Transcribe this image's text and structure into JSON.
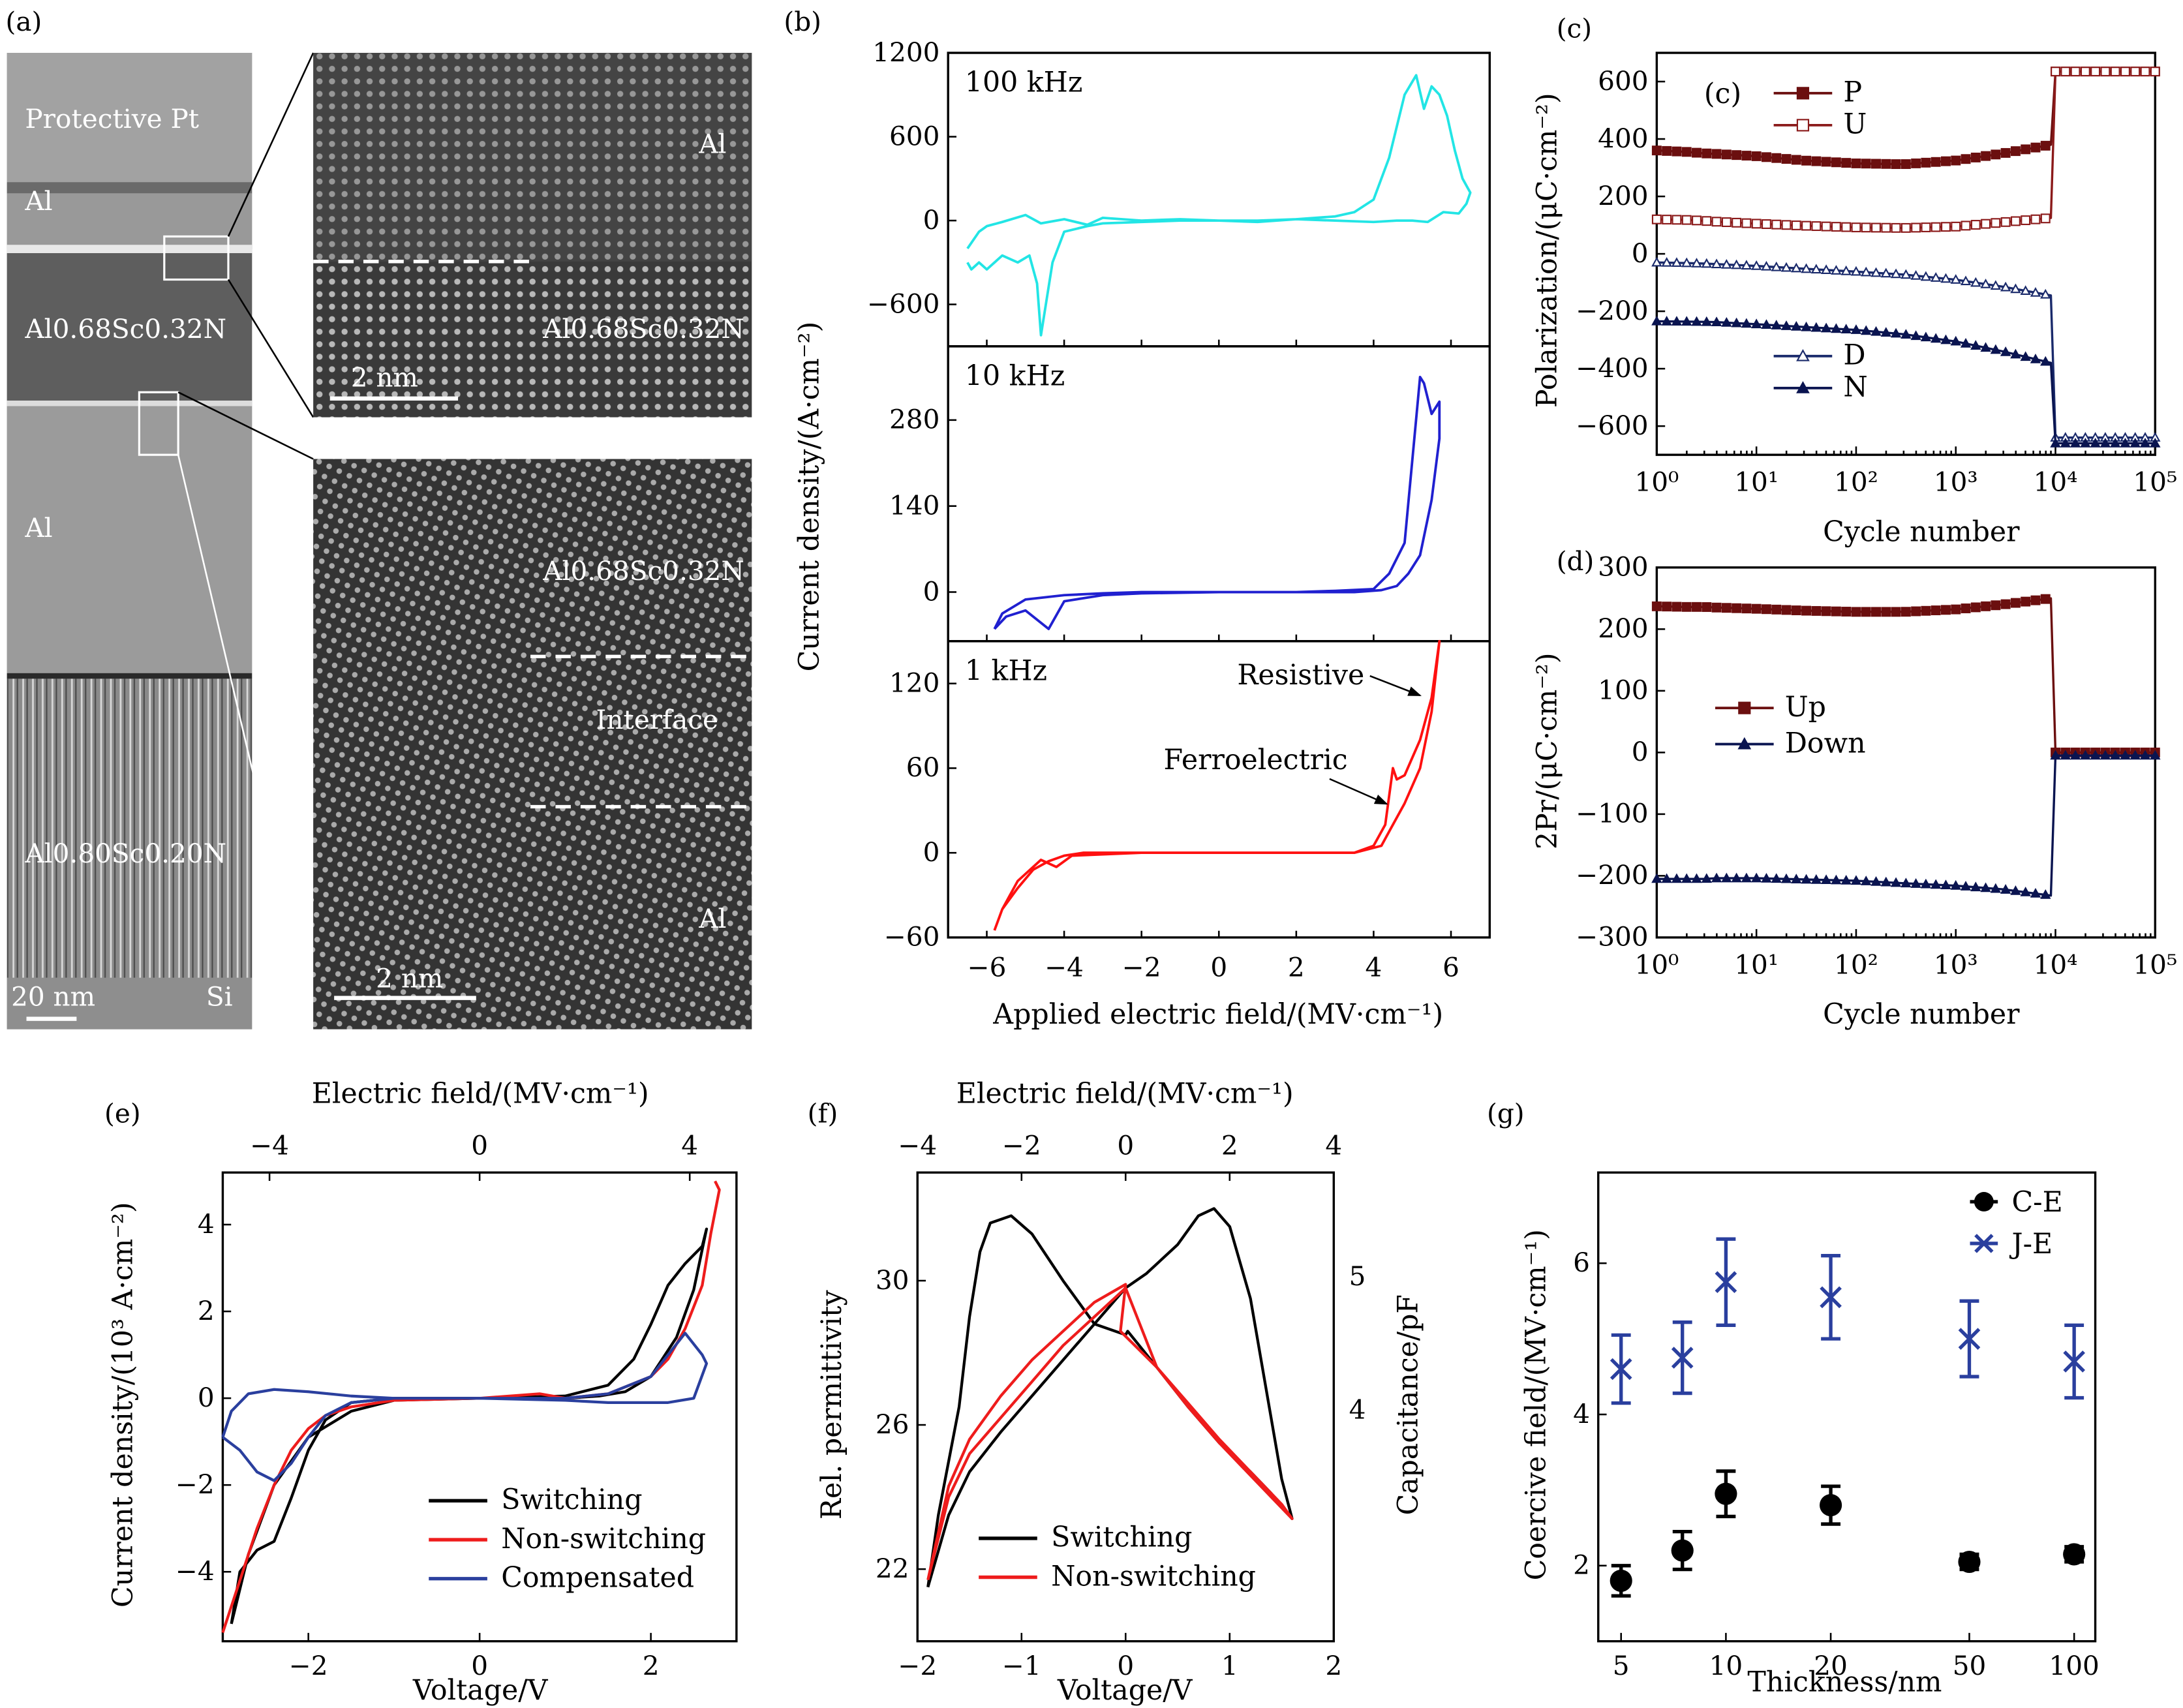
{
  "panel_labels": {
    "a": "(a)",
    "b": "(b)",
    "c": "(c)",
    "d": "(d)",
    "e": "(e)",
    "f": "(f)",
    "g": "(g)"
  },
  "tem": {
    "overview_labels": [
      "Protective Pt",
      "Al",
      "Al0.68Sc0.32N",
      "Al",
      "Al0.80Sc0.20N",
      "Si"
    ],
    "overview_scale_bar": "20 nm",
    "top_zoom": {
      "labels": [
        "Al",
        "Al0.68Sc0.32N"
      ],
      "scale_bar": "2 nm"
    },
    "bottom_zoom": {
      "labels": [
        "Al0.68Sc0.32N",
        "Interface",
        "Al"
      ],
      "scale_bar": "2 nm"
    }
  },
  "chart_data": [
    {
      "id": "b",
      "type": "line",
      "title": "",
      "xlabel": "Applied electric field/(MV·cm⁻¹)",
      "ylabel": "Current density/(A·cm⁻²)",
      "xlim": [
        -7,
        7
      ],
      "x_ticks": [
        -6,
        -4,
        -2,
        0,
        2,
        4,
        6
      ],
      "subplots": [
        {
          "label": "100 kHz",
          "color": "#22e5e5",
          "ylim": [
            -900,
            1200
          ],
          "y_ticks": [
            1200,
            600,
            0,
            -600
          ],
          "x": [
            -6.5,
            -6.4,
            -6.2,
            -6.0,
            -5.6,
            -5.2,
            -4.9,
            -4.7,
            -4.6,
            -4.3,
            -4.0,
            -3.4,
            -3.0,
            -2.0,
            -1.0,
            0,
            1.0,
            2.0,
            3.0,
            3.5,
            4.0,
            4.4,
            4.8,
            5.1,
            5.3,
            5.5,
            5.7,
            5.9,
            6.1,
            6.3,
            6.5,
            6.4,
            6.2,
            5.8,
            5.4,
            5.0,
            4.6,
            4.0,
            3.0,
            2.0,
            1.0,
            0,
            -1.0,
            -2.0,
            -3.0,
            -3.4,
            -4.0,
            -4.6,
            -5.0,
            -5.6,
            -6.0,
            -6.2,
            -6.5
          ],
          "y": [
            -300,
            -350,
            -300,
            -350,
            -250,
            -300,
            -250,
            -450,
            -820,
            -300,
            -80,
            -40,
            -20,
            -10,
            0,
            0,
            0,
            10,
            30,
            60,
            150,
            450,
            900,
            1040,
            800,
            960,
            900,
            750,
            500,
            300,
            200,
            120,
            50,
            60,
            -10,
            0,
            0,
            -10,
            0,
            10,
            -10,
            0,
            10,
            0,
            20,
            -30,
            10,
            -20,
            40,
            -10,
            -40,
            -80,
            -200
          ]
        },
        {
          "label": "10 kHz",
          "color": "#2020d0",
          "ylim": [
            -90,
            420
          ],
          "y_ticks": [
            280,
            140,
            0
          ],
          "x": [
            -5.8,
            -5.5,
            -5.0,
            -4.6,
            -4.4,
            -4.0,
            -3.0,
            -2.0,
            0,
            2.0,
            3.0,
            4.0,
            4.4,
            4.8,
            5.2,
            5.3,
            5.5,
            5.7,
            5.7,
            5.5,
            5.2,
            4.9,
            4.6,
            4.2,
            3.5,
            2.0,
            0,
            -2.0,
            -3.0,
            -4.0,
            -5.0,
            -5.6,
            -5.8
          ],
          "y": [
            -60,
            -40,
            -30,
            -50,
            -60,
            -15,
            -5,
            -2,
            0,
            0,
            2,
            5,
            30,
            80,
            350,
            340,
            290,
            310,
            250,
            150,
            60,
            30,
            10,
            3,
            0,
            0,
            0,
            0,
            -2,
            -5,
            -12,
            -35,
            -60
          ]
        },
        {
          "label": "1 kHz",
          "color": "#ff1010",
          "ylim": [
            -60,
            150
          ],
          "y_ticks": [
            120,
            60,
            0,
            -60
          ],
          "annotations": [
            "Resistive",
            "Ferroelectric"
          ],
          "x": [
            -5.8,
            -5.6,
            -5.2,
            -4.8,
            -4.4,
            -4.0,
            -3.5,
            -2.0,
            0,
            2.0,
            3.5,
            4.0,
            4.3,
            4.5,
            4.6,
            4.8,
            5.2,
            5.5,
            5.7,
            5.7,
            5.5,
            5.2,
            4.8,
            4.5,
            4.2,
            3.5,
            2.0,
            0,
            -2.0,
            -3.8,
            -4.2,
            -4.6,
            -5.2,
            -5.6,
            -5.8
          ],
          "y": [
            -55,
            -40,
            -25,
            -12,
            -6,
            -2,
            0,
            0,
            0,
            0,
            0,
            5,
            20,
            60,
            52,
            55,
            80,
            110,
            150,
            150,
            100,
            60,
            35,
            20,
            5,
            0,
            0,
            0,
            0,
            -2,
            -10,
            -5,
            -20,
            -40,
            -55
          ]
        }
      ]
    },
    {
      "id": "c",
      "type": "line",
      "xscale": "log",
      "xlabel": "Cycle number",
      "ylabel": "Polarization/(μC·cm⁻²)",
      "xlim": [
        1,
        100000
      ],
      "ylim": [
        -700,
        700
      ],
      "x_ticks": [
        "10⁰",
        "10¹",
        "10²",
        "10³",
        "10⁴",
        "10⁵"
      ],
      "y_ticks": [
        600,
        400,
        200,
        0,
        -200,
        -400,
        -600
      ],
      "inset_label": "(c)",
      "series": [
        {
          "name": "P",
          "color": "#6b0f0f",
          "marker": "filled-square",
          "x": [
            1,
            2,
            3,
            4,
            10,
            30,
            100,
            300,
            1000,
            3000,
            9000,
            10000,
            30000,
            100000
          ],
          "y": [
            360,
            355,
            350,
            348,
            340,
            325,
            315,
            312,
            325,
            350,
            380,
            635,
            635,
            635
          ]
        },
        {
          "name": "U",
          "color": "#8b1a1a",
          "marker": "open-square",
          "x": [
            1,
            2,
            3,
            4,
            10,
            30,
            100,
            300,
            1000,
            3000,
            9000,
            10000,
            30000,
            100000
          ],
          "y": [
            120,
            118,
            115,
            112,
            105,
            98,
            92,
            90,
            95,
            110,
            125,
            635,
            635,
            635
          ]
        },
        {
          "name": "D",
          "color": "#1a2a6b",
          "marker": "open-triangle",
          "x": [
            1,
            2,
            3,
            4,
            10,
            30,
            100,
            300,
            1000,
            3000,
            9000,
            10000,
            30000,
            100000
          ],
          "y": [
            -30,
            -32,
            -34,
            -36,
            -42,
            -52,
            -62,
            -72,
            -90,
            -115,
            -145,
            -640,
            -640,
            -640
          ]
        },
        {
          "name": "N",
          "color": "#0a1450",
          "marker": "filled-triangle",
          "x": [
            1,
            2,
            3,
            4,
            10,
            30,
            100,
            300,
            1000,
            3000,
            9000,
            10000,
            30000,
            100000
          ],
          "y": [
            -235,
            -236,
            -237,
            -238,
            -245,
            -255,
            -265,
            -280,
            -305,
            -340,
            -380,
            -660,
            -660,
            -660
          ]
        }
      ]
    },
    {
      "id": "d",
      "type": "line",
      "xscale": "log",
      "xlabel": "Cycle number",
      "ylabel": "2Pr/(μC·cm⁻²)",
      "xlim": [
        1,
        100000
      ],
      "ylim": [
        -300,
        300
      ],
      "x_ticks": [
        "10⁰",
        "10¹",
        "10²",
        "10³",
        "10⁴",
        "10⁵"
      ],
      "y_ticks": [
        300,
        200,
        100,
        0,
        -100,
        -200,
        -300
      ],
      "series": [
        {
          "name": "Up",
          "color": "#6b0f0f",
          "marker": "filled-square",
          "x": [
            1,
            2,
            3,
            4,
            10,
            30,
            100,
            300,
            1000,
            3000,
            9000,
            10000,
            30000,
            100000
          ],
          "y": [
            237,
            236,
            236,
            235,
            233,
            230,
            228,
            228,
            232,
            240,
            250,
            0,
            0,
            0
          ]
        },
        {
          "name": "Down",
          "color": "#0a1450",
          "marker": "filled-triangle",
          "x": [
            1,
            2,
            3,
            4,
            10,
            30,
            100,
            300,
            1000,
            3000,
            9000,
            10000,
            30000,
            100000
          ],
          "y": [
            -205,
            -205,
            -205,
            -204,
            -204,
            -206,
            -208,
            -212,
            -216,
            -222,
            -232,
            -5,
            -5,
            -5
          ]
        }
      ]
    },
    {
      "id": "e",
      "type": "line",
      "xlabel": "Voltage/V",
      "x2label": "Electric field/(MV·cm⁻¹)",
      "ylabel": "Current density/(10³ A·cm⁻²)",
      "xlim": [
        -3,
        3
      ],
      "ylim": [
        -5.6,
        5.2
      ],
      "x_ticks": [
        -2,
        0,
        2
      ],
      "x2_ticks": [
        -4,
        0,
        4
      ],
      "y_ticks": [
        4,
        2,
        0,
        -2,
        -4
      ],
      "series": [
        {
          "name": "Switching",
          "color": "#000000",
          "x": [
            -2.9,
            -2.8,
            -2.6,
            -2.4,
            -2.2,
            -2.0,
            -1.8,
            -1.5,
            -1.0,
            0,
            1.0,
            1.5,
            1.8,
            2.0,
            2.2,
            2.4,
            2.6,
            2.65,
            2.5,
            2.3,
            2.0,
            1.7,
            1.4,
            1.0,
            0,
            -1.0,
            -1.5,
            -2.0,
            -2.4,
            -2.7,
            -2.9
          ],
          "y": [
            -5.2,
            -4.0,
            -3.5,
            -3.3,
            -2.3,
            -1.2,
            -0.5,
            -0.1,
            0,
            0,
            0.05,
            0.3,
            0.9,
            1.7,
            2.6,
            3.1,
            3.5,
            3.9,
            2.5,
            1.4,
            0.5,
            0.15,
            0.05,
            0,
            0,
            -0.05,
            -0.3,
            -0.9,
            -2.0,
            -3.6,
            -5.2
          ]
        },
        {
          "name": "Non-switching",
          "color": "#ee1c1c",
          "x": [
            -3.0,
            -2.8,
            -2.6,
            -2.4,
            -2.2,
            -2.0,
            -1.8,
            -1.5,
            -1.0,
            0,
            0.7,
            1.0,
            1.5,
            2.0,
            2.2,
            2.4,
            2.6,
            2.7,
            2.8,
            2.75
          ],
          "y": [
            -5.4,
            -4.2,
            -3.0,
            -2.0,
            -1.2,
            -0.7,
            -0.4,
            -0.2,
            -0.05,
            0,
            0.1,
            0,
            0.1,
            0.5,
            0.9,
            1.6,
            2.6,
            3.8,
            4.8,
            5.0
          ]
        },
        {
          "name": "Compensated",
          "color": "#2a3f9e",
          "x": [
            -3.0,
            -2.8,
            -2.6,
            -2.4,
            -2.2,
            -2.0,
            -1.8,
            -1.5,
            -1.0,
            0,
            1.0,
            1.5,
            2.0,
            2.2,
            2.4,
            2.6,
            2.65,
            2.5,
            2.2,
            2.0,
            1.5,
            1.0,
            0,
            -1.0,
            -1.5,
            -2.0,
            -2.4,
            -2.7,
            -2.9,
            -3.0
          ],
          "y": [
            -0.9,
            -1.2,
            -1.7,
            -1.9,
            -1.5,
            -0.9,
            -0.4,
            -0.1,
            0,
            0,
            0,
            0.1,
            0.5,
            1.0,
            1.5,
            1.0,
            0.8,
            0,
            -0.1,
            -0.1,
            -0.1,
            -0.05,
            0,
            0,
            0.05,
            0.15,
            0.2,
            0.1,
            -0.3,
            -0.9
          ]
        }
      ]
    },
    {
      "id": "f",
      "type": "line",
      "xlabel": "Voltage/V",
      "x2label": "Electric field/(MV·cm⁻¹)",
      "ylabel": "Rel. permittivity",
      "y2label": "Capacitance/pF",
      "xlim": [
        -2,
        2
      ],
      "ylim": [
        20,
        33
      ],
      "x_ticks": [
        -2,
        -1,
        0,
        1,
        2
      ],
      "x2_ticks": [
        -4,
        -2,
        0,
        2,
        4
      ],
      "y_ticks": [
        30,
        26,
        22
      ],
      "y2_ticks": [
        5,
        4
      ],
      "series": [
        {
          "name": "Switching",
          "color": "#000000",
          "x": [
            -1.9,
            -1.8,
            -1.6,
            -1.5,
            -1.4,
            -1.3,
            -1.1,
            -0.9,
            -0.6,
            -0.3,
            0,
            0.02,
            0.3,
            0.6,
            0.9,
            1.2,
            1.4,
            1.6,
            1.5,
            1.35,
            1.2,
            1.0,
            0.85,
            0.7,
            0.5,
            0.2,
            0,
            -0.3,
            -0.6,
            -0.9,
            -1.2,
            -1.5,
            -1.7,
            -1.9
          ],
          "y": [
            21.5,
            23.5,
            26.5,
            29.0,
            30.8,
            31.6,
            31.8,
            31.3,
            30.0,
            28.8,
            28.5,
            28.6,
            27.6,
            26.5,
            25.5,
            24.7,
            24.1,
            23.4,
            24.5,
            27.0,
            29.5,
            31.5,
            32.0,
            31.8,
            31.0,
            30.2,
            29.8,
            28.8,
            27.8,
            26.8,
            25.8,
            24.7,
            23.5,
            21.5
          ]
        },
        {
          "name": "Non-switching",
          "color": "#ee1c1c",
          "x": [
            -1.9,
            -1.7,
            -1.5,
            -1.2,
            -0.9,
            -0.6,
            -0.3,
            0,
            -0.05,
            0.3,
            0.6,
            0.9,
            1.2,
            1.4,
            1.6,
            1.5,
            1.2,
            0.9,
            0.6,
            0.3,
            0,
            -0.3,
            -0.6,
            -0.9,
            -1.2,
            -1.5,
            -1.7,
            -1.9
          ],
          "y": [
            21.7,
            24.3,
            25.6,
            26.8,
            27.8,
            28.6,
            29.4,
            29.9,
            28.6,
            27.6,
            26.5,
            25.5,
            24.6,
            24.0,
            23.4,
            23.8,
            24.7,
            25.6,
            26.6,
            27.6,
            29.8,
            29.0,
            28.2,
            27.2,
            26.2,
            25.2,
            24.0,
            21.7
          ]
        }
      ]
    },
    {
      "id": "g",
      "type": "scatter",
      "xscale": "log",
      "xlabel": "Thickness/nm",
      "ylabel": "Coercive field/(MV·cm⁻¹)",
      "x_ticks": [
        5,
        10,
        20,
        50,
        100
      ],
      "xlim": [
        4.3,
        115
      ],
      "ylim": [
        1,
        7.2
      ],
      "y_ticks": [
        6,
        4,
        2
      ],
      "series": [
        {
          "name": "C-E",
          "color": "#000000",
          "marker": "filled-circle",
          "x": [
            5,
            7.5,
            10,
            20,
            50,
            100
          ],
          "y": [
            1.8,
            2.2,
            2.95,
            2.8,
            2.05,
            2.15
          ],
          "err": [
            0.2,
            0.25,
            0.3,
            0.25,
            0.1,
            0.1
          ]
        },
        {
          "name": "J-E",
          "color": "#2a3f9e",
          "marker": "x",
          "x": [
            5,
            7.5,
            10,
            20,
            50,
            100
          ],
          "y": [
            4.6,
            4.75,
            5.75,
            5.55,
            5.0,
            4.7
          ],
          "err": [
            0.45,
            0.47,
            0.57,
            0.55,
            0.5,
            0.48
          ]
        }
      ]
    }
  ]
}
